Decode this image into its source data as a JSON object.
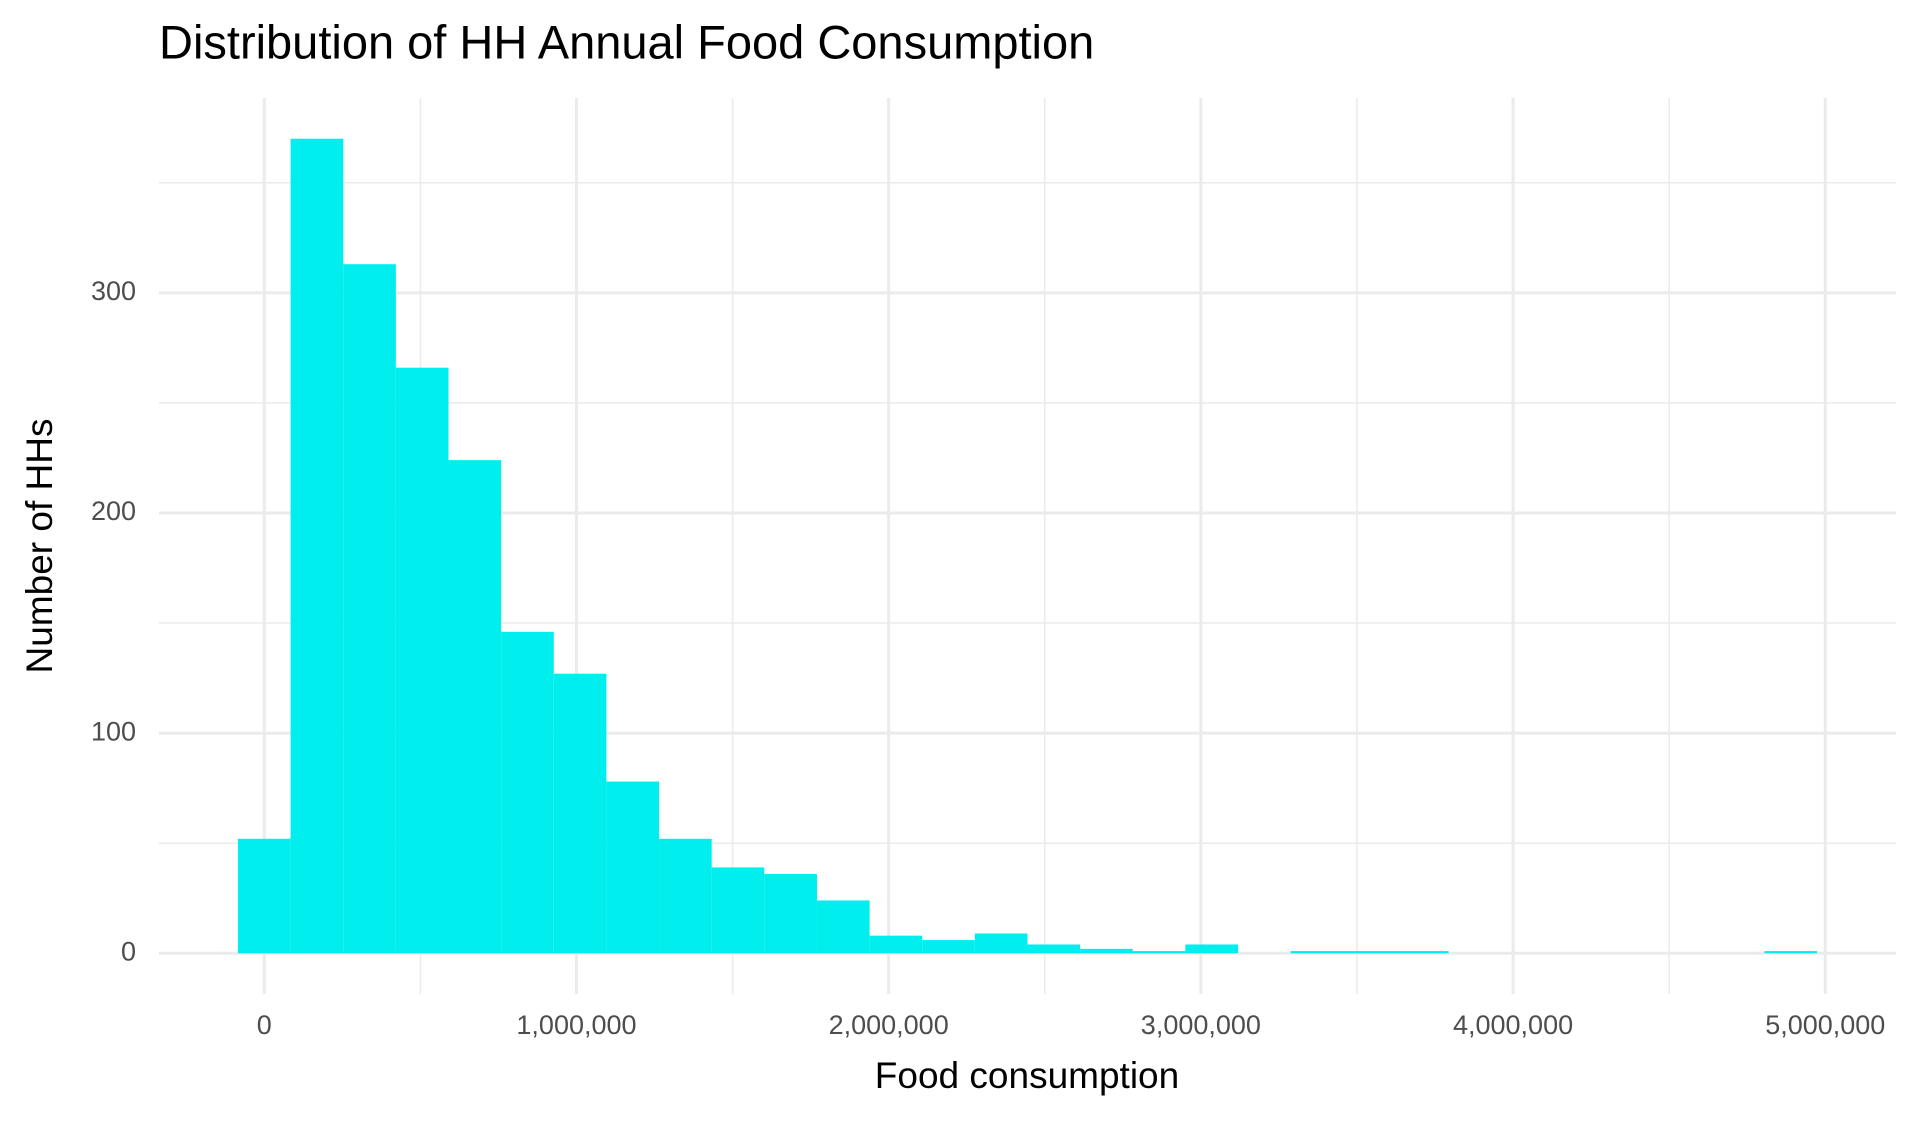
{
  "chart_data": {
    "type": "histogram",
    "title": "Distribution of HH Annual Food Consumption",
    "x_label": "Food consumption",
    "y_label": "Number of HHs",
    "bins": [
      -84300,
      84300,
      252900,
      421500,
      590100,
      758700,
      927300,
      1095900,
      1264500,
      1433100,
      1601700,
      1770300,
      1938900,
      2107500,
      2276100,
      2444700,
      2613300,
      2781900,
      2950500,
      3119100,
      3287700,
      3456300,
      3624900,
      3793500,
      3962100,
      4130700,
      4299300,
      4467900,
      4636500,
      4805100,
      4973700
    ],
    "values": [
      52,
      370,
      313,
      266,
      224,
      146,
      127,
      78,
      52,
      39,
      36,
      24,
      8,
      6,
      9,
      4,
      2,
      1,
      4,
      0,
      1,
      1,
      1,
      0,
      0,
      0,
      0,
      0,
      0,
      1
    ],
    "color": "#00eeee",
    "xlim": [
      -337200,
      5226600
    ],
    "ylim": [
      -18.5,
      388.5
    ],
    "xticks": [
      0,
      {
        "value": 1000000,
        "label": "1,000,000"
      },
      {
        "value": 2000000,
        "label": "2,000,000"
      },
      {
        "value": 3000000,
        "label": "3,000,000"
      },
      {
        "value": 4000000,
        "label": "4,000,000"
      },
      {
        "value": 5000000,
        "label": "5,000,000"
      }
    ],
    "yticks": [
      0,
      100,
      200,
      300
    ],
    "x_minor_grid": [
      500000,
      1500000,
      2500000,
      3500000,
      4500000
    ],
    "y_minor_grid": [
      50,
      150,
      250,
      350
    ],
    "grid": true
  }
}
